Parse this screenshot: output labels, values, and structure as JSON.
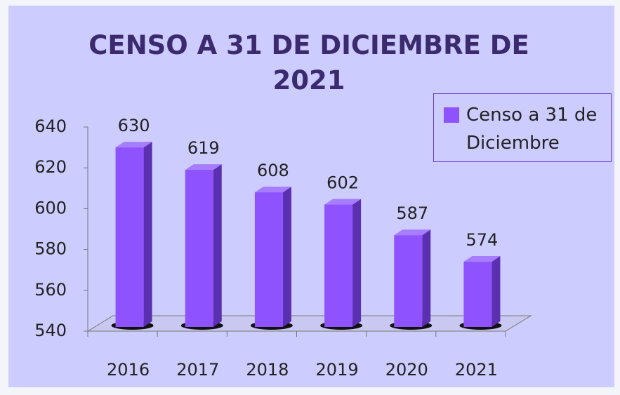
{
  "chart_data": {
    "type": "bar3d",
    "title": "CENSO A 31 DE DICIEMBRE DE 2021",
    "categories": [
      "2016",
      "2017",
      "2018",
      "2019",
      "2020",
      "2021"
    ],
    "series": [
      {
        "name": "Censo a 31 de Diciembre",
        "color": "#8f52ff",
        "values": [
          630,
          619,
          608,
          602,
          587,
          574
        ]
      }
    ],
    "ylim": [
      540,
      640
    ],
    "yticks": [
      540,
      560,
      580,
      600,
      620,
      640
    ],
    "legend": "upper right"
  }
}
